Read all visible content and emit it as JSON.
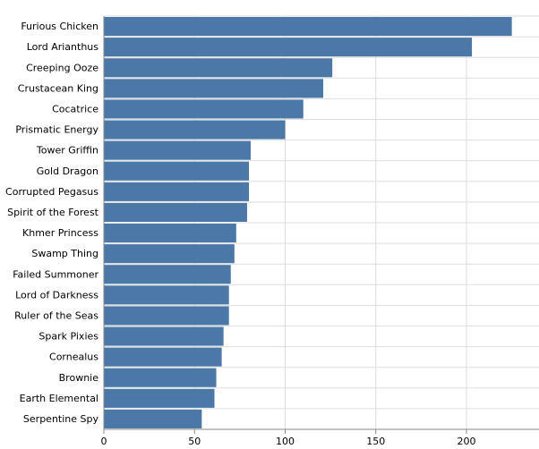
{
  "chart_data": {
    "type": "bar",
    "orientation": "horizontal",
    "title": "",
    "xlabel": "",
    "ylabel": "",
    "categories": [
      "Furious Chicken",
      "Lord Arianthus",
      "Creeping Ooze",
      "Crustacean King",
      "Cocatrice",
      "Prismatic Energy",
      "Tower Griffin",
      "Gold Dragon",
      "Corrupted Pegasus",
      "Spirit of the Forest",
      "Khmer Princess",
      "Swamp Thing",
      "Failed Summoner",
      "Lord of Darkness",
      "Ruler of the Seas",
      "Spark Pixies",
      "Cornealus",
      "Brownie",
      "Earth Elemental",
      "Serpentine Spy"
    ],
    "values": [
      225,
      203,
      126,
      121,
      110,
      100,
      81,
      80,
      80,
      79,
      73,
      72,
      70,
      69,
      69,
      66,
      65,
      62,
      61,
      54
    ],
    "xlim": [
      0,
      240
    ],
    "xticks": [
      0,
      50,
      100,
      150,
      200
    ],
    "xtick_labels": [
      "0",
      "50",
      "100",
      "150",
      "200"
    ],
    "grid": true,
    "legend": "none",
    "bar_color": "#4c78a8"
  }
}
